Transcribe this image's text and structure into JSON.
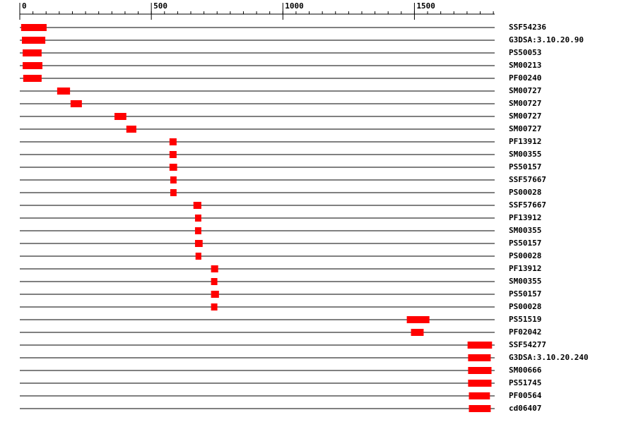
{
  "chart_data": {
    "type": "domains",
    "xlim": [
      0,
      1805
    ],
    "xticks": [
      0,
      500,
      1000,
      1500
    ],
    "color": "#ff0000",
    "tracks": [
      {
        "name": "SSF54236",
        "start": 5,
        "end": 102
      },
      {
        "name": "G3DSA:3.10.20.90",
        "start": 8,
        "end": 97
      },
      {
        "name": "PS50053",
        "start": 11,
        "end": 83
      },
      {
        "name": "SM00213",
        "start": 11,
        "end": 86
      },
      {
        "name": "PF00240",
        "start": 13,
        "end": 83
      },
      {
        "name": "SM00727",
        "start": 142,
        "end": 191
      },
      {
        "name": "SM00727",
        "start": 193,
        "end": 236
      },
      {
        "name": "SM00727",
        "start": 360,
        "end": 405
      },
      {
        "name": "SM00727",
        "start": 405,
        "end": 443
      },
      {
        "name": "PF13912",
        "start": 569,
        "end": 596
      },
      {
        "name": "SM00355",
        "start": 569,
        "end": 596
      },
      {
        "name": "PS50157",
        "start": 569,
        "end": 598
      },
      {
        "name": "SSF57667",
        "start": 572,
        "end": 596
      },
      {
        "name": "PS00028",
        "start": 572,
        "end": 596
      },
      {
        "name": "SSF57667",
        "start": 660,
        "end": 690
      },
      {
        "name": "PF13912",
        "start": 666,
        "end": 690
      },
      {
        "name": "SM00355",
        "start": 666,
        "end": 690
      },
      {
        "name": "PS50157",
        "start": 666,
        "end": 695
      },
      {
        "name": "PS00028",
        "start": 668,
        "end": 690
      },
      {
        "name": "PF13912",
        "start": 727,
        "end": 754
      },
      {
        "name": "SM00355",
        "start": 727,
        "end": 751
      },
      {
        "name": "PS50157",
        "start": 727,
        "end": 757
      },
      {
        "name": "PS00028",
        "start": 727,
        "end": 751
      },
      {
        "name": "PS51519",
        "start": 1471,
        "end": 1557
      },
      {
        "name": "PF02042",
        "start": 1487,
        "end": 1535
      },
      {
        "name": "SSF54277",
        "start": 1702,
        "end": 1795
      },
      {
        "name": "G3DSA:3.10.20.240",
        "start": 1704,
        "end": 1790
      },
      {
        "name": "SM00666",
        "start": 1704,
        "end": 1793
      },
      {
        "name": "PS51745",
        "start": 1704,
        "end": 1793
      },
      {
        "name": "PF00564",
        "start": 1707,
        "end": 1787
      },
      {
        "name": "cd06407",
        "start": 1707,
        "end": 1790
      }
    ]
  }
}
